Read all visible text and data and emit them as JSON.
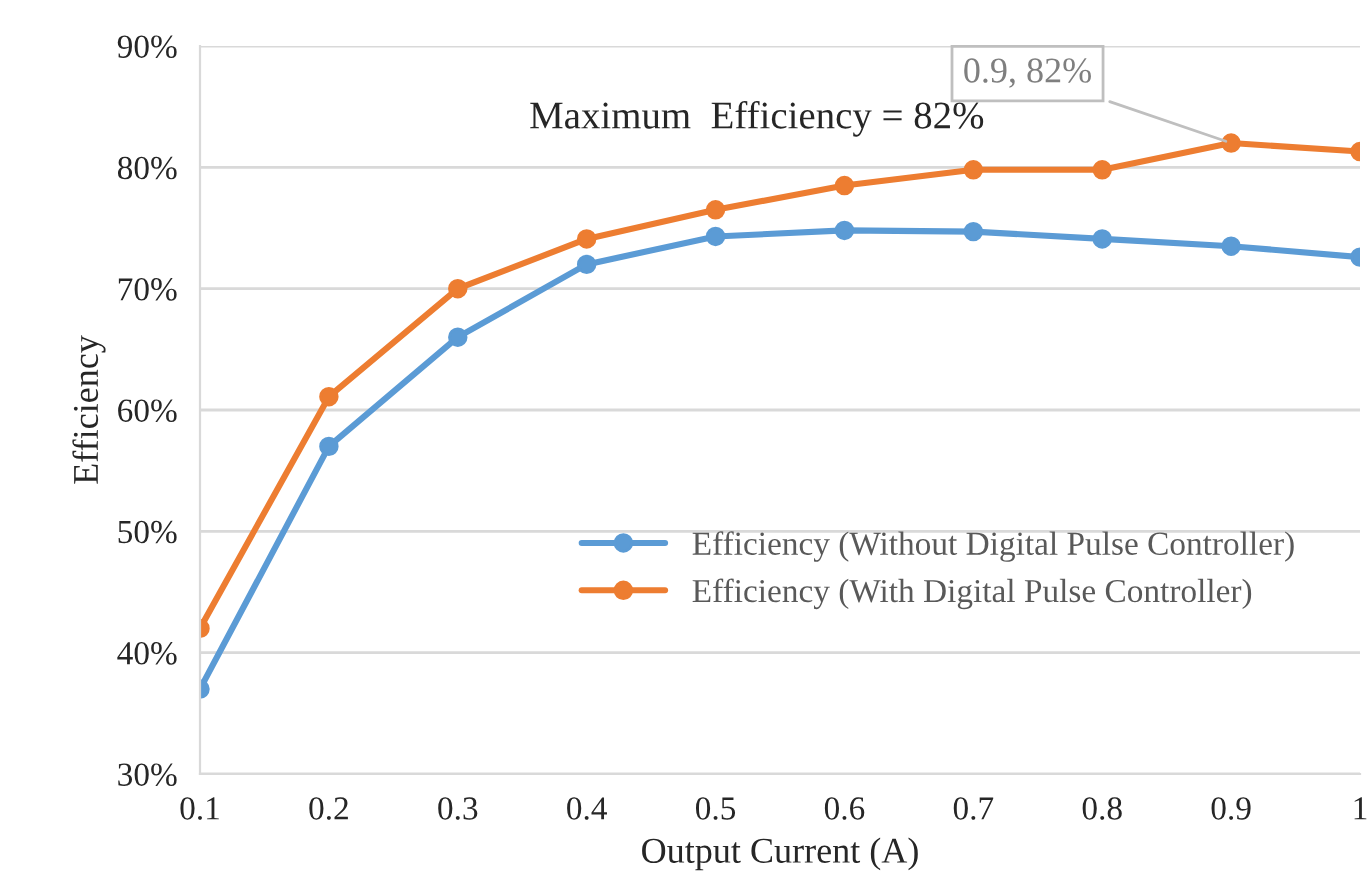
{
  "chart_data": {
    "type": "line",
    "xlabel": "Output Current (A)",
    "ylabel": "Efficiency",
    "x": [
      0.1,
      0.2,
      0.3,
      0.4,
      0.5,
      0.6,
      0.7,
      0.8,
      0.9,
      1
    ],
    "series": [
      {
        "name": "Efficiency (Without Digital Pulse Controller)",
        "color": "#5b9bd5",
        "values": [
          37,
          57,
          66,
          72,
          74.3,
          74.8,
          74.7,
          74.1,
          73.5,
          72.6
        ]
      },
      {
        "name": "Efficiency (With Digital Pulse Controller)",
        "color": "#ed7d31",
        "values": [
          42,
          61.1,
          70,
          74.1,
          76.5,
          78.5,
          79.8,
          79.8,
          82,
          81.3
        ]
      }
    ],
    "xlim": [
      0.1,
      1
    ],
    "xticks": [
      0.1,
      0.2,
      0.3,
      0.4,
      0.5,
      0.6,
      0.7,
      0.8,
      0.9,
      1
    ],
    "ylim": [
      30,
      90
    ],
    "yticks": [
      {
        "value": 30,
        "label": "30%"
      },
      {
        "value": 40,
        "label": "40%"
      },
      {
        "value": 50,
        "label": "50%"
      },
      {
        "value": 60,
        "label": "60%"
      },
      {
        "value": 70,
        "label": "70%"
      },
      {
        "value": 80,
        "label": "80%"
      },
      {
        "value": 90,
        "label": "90%"
      }
    ],
    "grid": "y",
    "legend": "right",
    "marker": "circle",
    "line_style": "solid",
    "annotations": [
      "Maximum  Efficiency = 82%",
      {
        "text": "0.9, 82%",
        "x": 0.9,
        "y": 82
      }
    ]
  }
}
